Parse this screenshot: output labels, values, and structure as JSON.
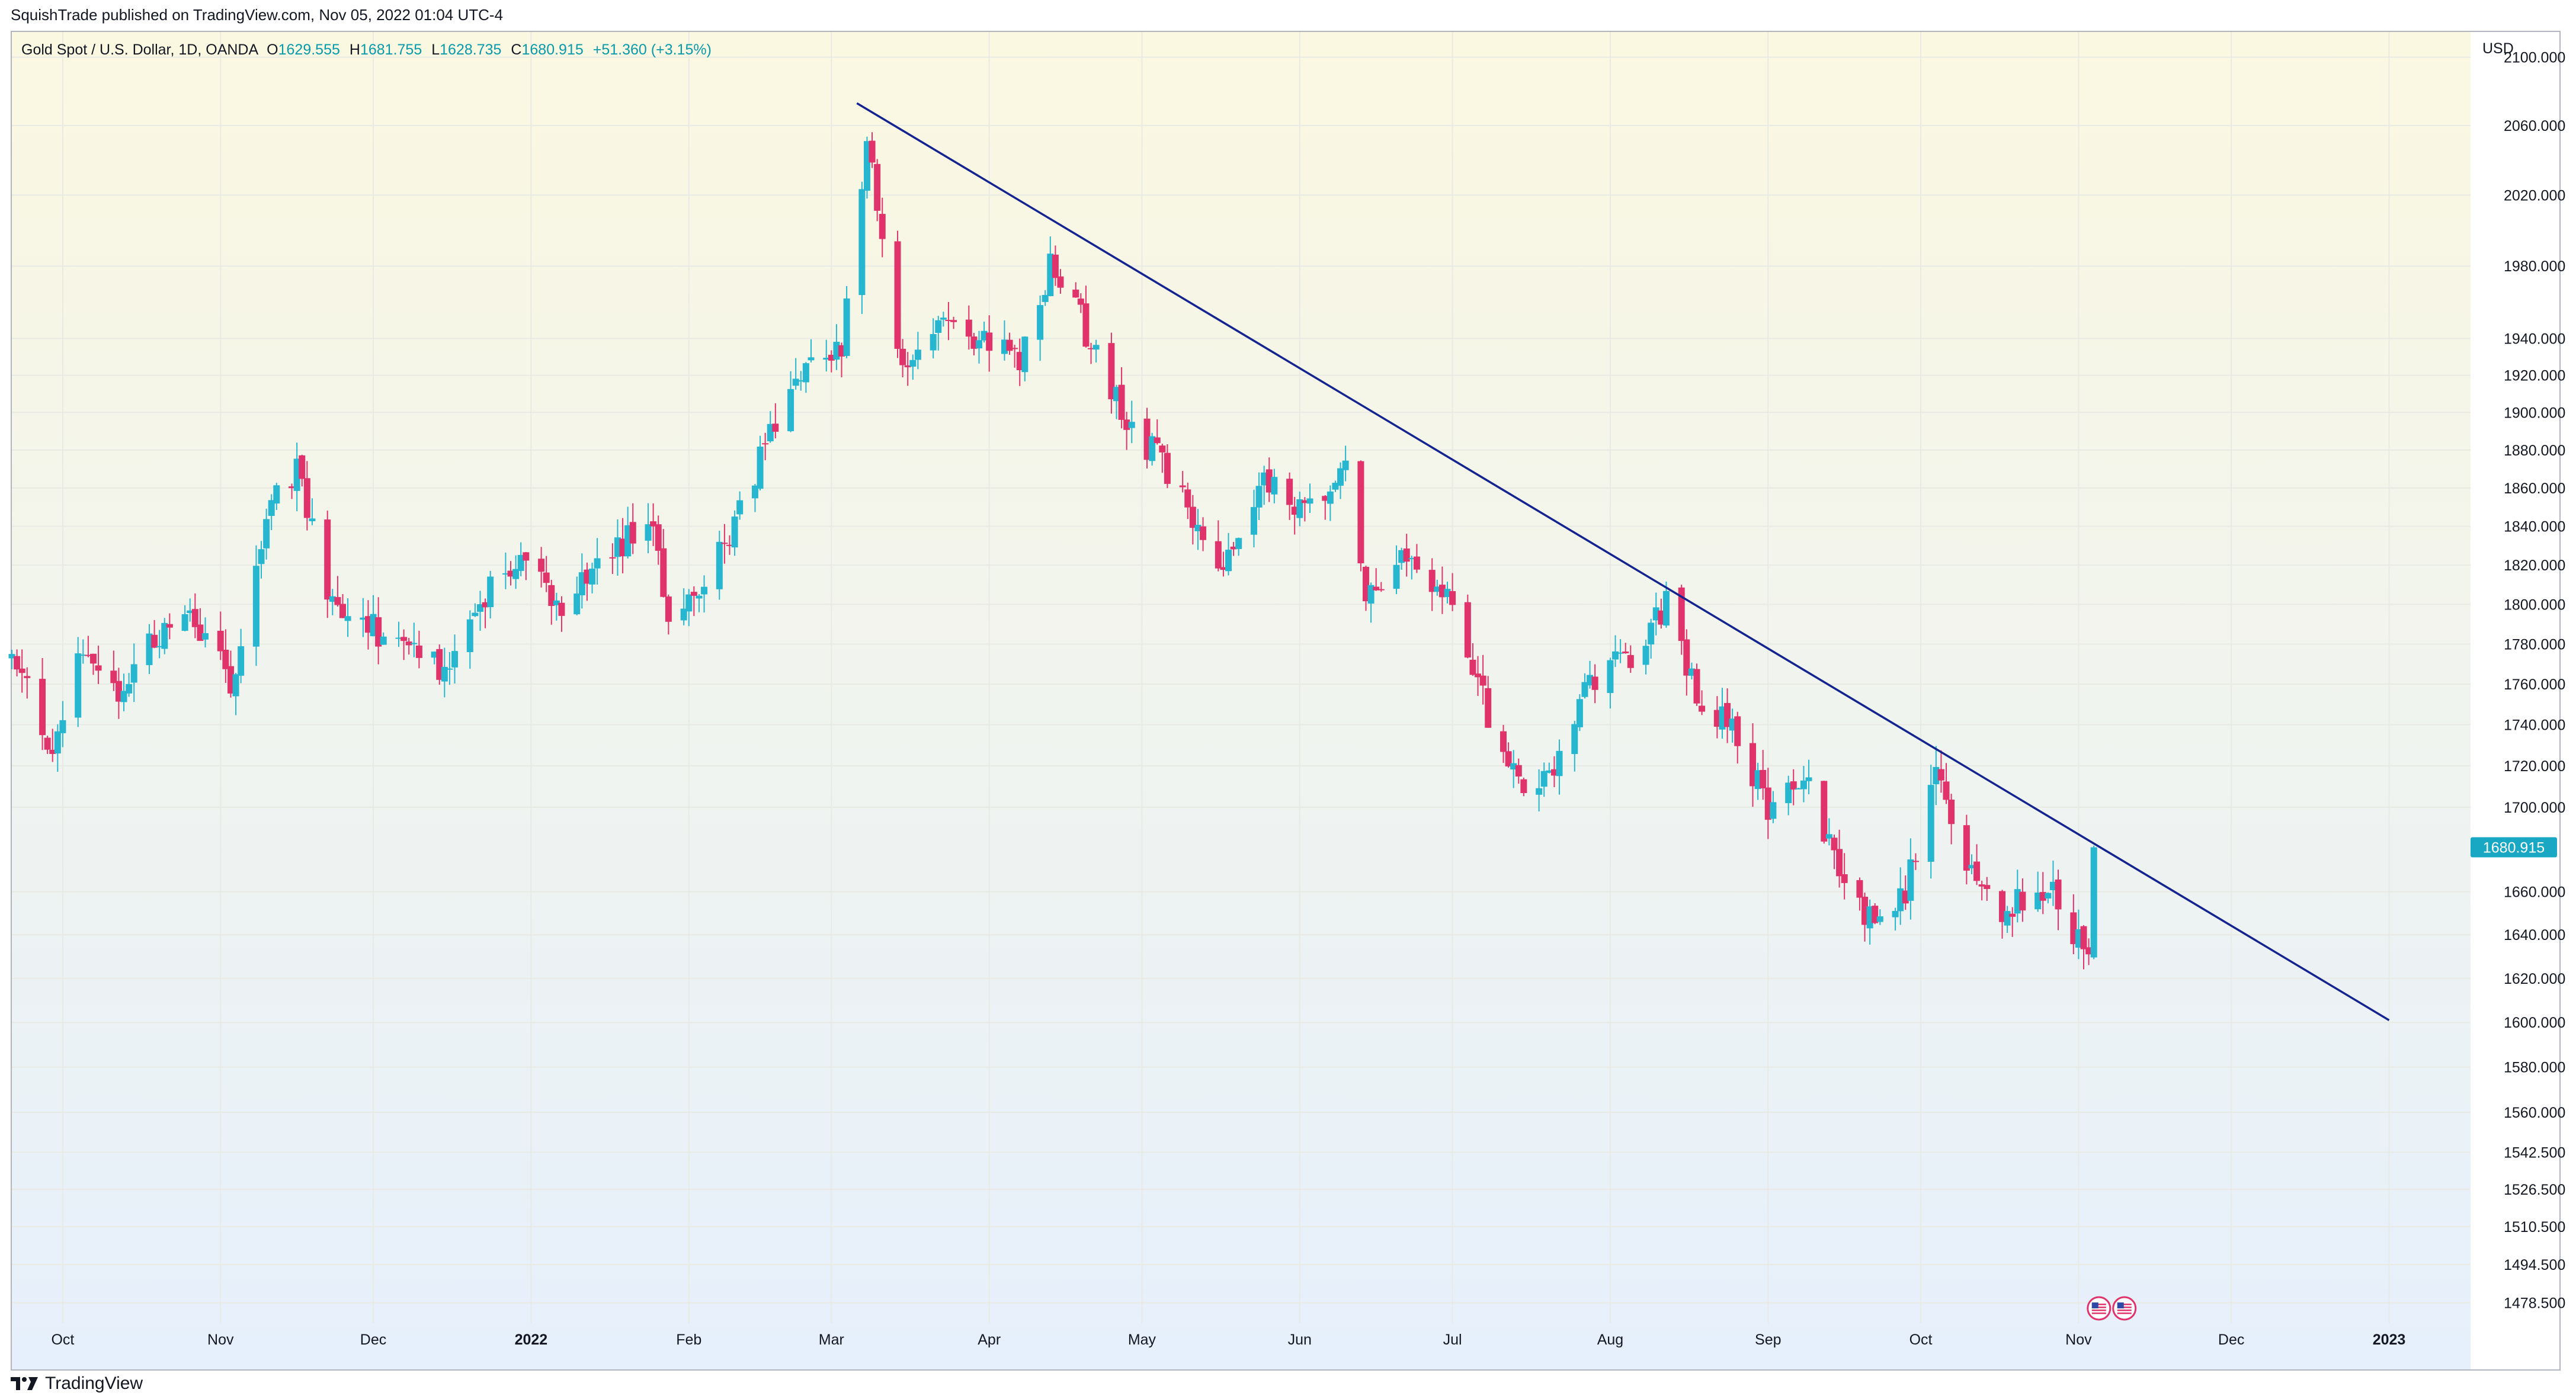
{
  "publisher_line": "SquishTrade published on TradingView.com, Nov 05, 2022 01:04 UTC-4",
  "legend": {
    "symbol": "Gold Spot / U.S. Dollar, 1D, OANDA",
    "o_key": "O",
    "o": "1629.555",
    "h_key": "H",
    "h": "1681.755",
    "l_key": "L",
    "l": "1628.735",
    "c_key": "C",
    "c": "1680.915",
    "change": "+51.360 (+3.15%)"
  },
  "currency": "USD",
  "footer": {
    "brand": "TradingView",
    "logo_icon": "tradingview-logo-icon"
  },
  "colors": {
    "up": "#26b6cf",
    "down": "#e0336b",
    "trendline": "#13238f",
    "price_tag": "#18a8c3",
    "bg_top": "#fbf8e1",
    "bg_bottom": "#e6f0fc",
    "grid": "#e8eae3"
  },
  "chart_data": {
    "type": "candlestick",
    "symbol": "Gold Spot / U.S. Dollar",
    "interval": "1D",
    "exchange": "OANDA",
    "yscale": "log",
    "ylim": [
      1470,
      2115
    ],
    "x_range": [
      "2021-09-21",
      "2023-01-17"
    ],
    "y_ticks": [
      "2100.000",
      "2060.000",
      "2020.000",
      "1980.000",
      "1940.000",
      "1920.000",
      "1900.000",
      "1880.000",
      "1860.000",
      "1840.000",
      "1820.000",
      "1800.000",
      "1780.000",
      "1760.000",
      "1740.000",
      "1720.000",
      "1700.000",
      "1660.000",
      "1640.000",
      "1620.000",
      "1600.000",
      "1580.000",
      "1560.000",
      "1542.500",
      "1526.500",
      "1510.500",
      "1494.500",
      "1478.500"
    ],
    "x_ticks": [
      {
        "label": "Oct",
        "date": "2021-10-01",
        "bold": false
      },
      {
        "label": "Nov",
        "date": "2021-11-01",
        "bold": false
      },
      {
        "label": "Dec",
        "date": "2021-12-01",
        "bold": false
      },
      {
        "label": "2022",
        "date": "2022-01-01",
        "bold": true
      },
      {
        "label": "Feb",
        "date": "2022-02-01",
        "bold": false
      },
      {
        "label": "Mar",
        "date": "2022-03-01",
        "bold": false
      },
      {
        "label": "Apr",
        "date": "2022-04-01",
        "bold": false
      },
      {
        "label": "May",
        "date": "2022-05-01",
        "bold": false
      },
      {
        "label": "Jun",
        "date": "2022-06-01",
        "bold": false
      },
      {
        "label": "Jul",
        "date": "2022-07-01",
        "bold": false
      },
      {
        "label": "Aug",
        "date": "2022-08-01",
        "bold": false
      },
      {
        "label": "Sep",
        "date": "2022-09-01",
        "bold": false
      },
      {
        "label": "Oct",
        "date": "2022-10-01",
        "bold": false
      },
      {
        "label": "Nov",
        "date": "2022-11-01",
        "bold": false
      },
      {
        "label": "Dec",
        "date": "2022-12-01",
        "bold": false
      },
      {
        "label": "2023",
        "date": "2023-01-01",
        "bold": true
      }
    ],
    "last_price": "1680.915",
    "trendline": {
      "from": {
        "date": "2022-03-06",
        "price": 2073
      },
      "to": {
        "date": "2023-01-01",
        "price": 1601
      }
    },
    "event_markers": [
      {
        "date": "2022-11-05",
        "icon": "us-flag-icon"
      },
      {
        "date": "2022-11-10",
        "icon": "us-flag-icon"
      }
    ],
    "anchors": [
      {
        "date": "2021-09-21",
        "close": 1774
      },
      {
        "date": "2021-09-29",
        "close": 1727
      },
      {
        "date": "2021-10-04",
        "close": 1769
      },
      {
        "date": "2021-10-12",
        "close": 1758
      },
      {
        "date": "2021-10-19",
        "close": 1782
      },
      {
        "date": "2021-10-26",
        "close": 1794
      },
      {
        "date": "2021-11-03",
        "close": 1760
      },
      {
        "date": "2021-11-12",
        "close": 1864
      },
      {
        "date": "2021-11-16",
        "close": 1868
      },
      {
        "date": "2021-11-22",
        "close": 1806
      },
      {
        "date": "2021-12-03",
        "close": 1783
      },
      {
        "date": "2021-12-15",
        "close": 1768
      },
      {
        "date": "2021-12-22",
        "close": 1803
      },
      {
        "date": "2021-12-31",
        "close": 1828
      },
      {
        "date": "2022-01-07",
        "close": 1797
      },
      {
        "date": "2022-01-14",
        "close": 1818
      },
      {
        "date": "2022-01-25",
        "close": 1848
      },
      {
        "date": "2022-01-28",
        "close": 1786
      },
      {
        "date": "2022-02-09",
        "close": 1835
      },
      {
        "date": "2022-02-17",
        "close": 1890
      },
      {
        "date": "2022-02-24",
        "close": 1927
      },
      {
        "date": "2022-03-03",
        "close": 1935
      },
      {
        "date": "2022-03-08",
        "close": 2052
      },
      {
        "date": "2022-03-11",
        "close": 1988
      },
      {
        "date": "2022-03-15",
        "close": 1918
      },
      {
        "date": "2022-03-23",
        "close": 1945
      },
      {
        "date": "2022-03-31",
        "close": 1937
      },
      {
        "date": "2022-04-07",
        "close": 1930
      },
      {
        "date": "2022-04-13",
        "close": 1979
      },
      {
        "date": "2022-04-19",
        "close": 1950
      },
      {
        "date": "2022-04-28",
        "close": 1893
      },
      {
        "date": "2022-05-05",
        "close": 1876
      },
      {
        "date": "2022-05-16",
        "close": 1812
      },
      {
        "date": "2022-05-24",
        "close": 1864
      },
      {
        "date": "2022-06-03",
        "close": 1850
      },
      {
        "date": "2022-06-10",
        "close": 1871
      },
      {
        "date": "2022-06-14",
        "close": 1809
      },
      {
        "date": "2022-06-23",
        "close": 1824
      },
      {
        "date": "2022-06-30",
        "close": 1807
      },
      {
        "date": "2022-07-05",
        "close": 1765
      },
      {
        "date": "2022-07-14",
        "close": 1709
      },
      {
        "date": "2022-07-21",
        "close": 1718
      },
      {
        "date": "2022-07-29",
        "close": 1765
      },
      {
        "date": "2022-08-05",
        "close": 1774
      },
      {
        "date": "2022-08-12",
        "close": 1801
      },
      {
        "date": "2022-08-19",
        "close": 1747
      },
      {
        "date": "2022-08-26",
        "close": 1737
      },
      {
        "date": "2022-09-01",
        "close": 1697
      },
      {
        "date": "2022-09-09",
        "close": 1716
      },
      {
        "date": "2022-09-15",
        "close": 1664
      },
      {
        "date": "2022-09-23",
        "close": 1643
      },
      {
        "date": "2022-09-28",
        "close": 1660
      },
      {
        "date": "2022-10-04",
        "close": 1725
      },
      {
        "date": "2022-10-11",
        "close": 1666
      },
      {
        "date": "2022-10-18",
        "close": 1650
      },
      {
        "date": "2022-10-21",
        "close": 1657
      },
      {
        "date": "2022-10-26",
        "close": 1664
      },
      {
        "date": "2022-11-03",
        "close": 1629
      },
      {
        "date": "2022-11-04",
        "close": 1680.915
      }
    ]
  }
}
